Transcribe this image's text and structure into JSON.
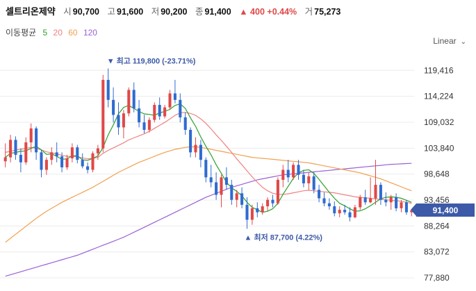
{
  "stock": {
    "name": "셀트리온제약",
    "open_label": "시",
    "open": "90,700",
    "high_label": "고",
    "high": "91,600",
    "low_label": "저",
    "low": "90,200",
    "close_label": "종",
    "close": "91,400",
    "change_arrow": "▲",
    "change": "400",
    "change_pct": "+0.44%",
    "volume_label": "거",
    "volume": "75,273"
  },
  "moving_average": {
    "title": "이동평균",
    "periods": [
      {
        "label": "5",
        "color": "#2ca02c"
      },
      {
        "label": "20",
        "color": "#f08080"
      },
      {
        "label": "60",
        "color": "#f0a050"
      },
      {
        "label": "120",
        "color": "#9a5fd6"
      }
    ]
  },
  "scale_selector": {
    "label": "Linear",
    "icon": "chevron-down-icon"
  },
  "current_price_tag": "91,400",
  "annotations": {
    "high": {
      "marker": "▼",
      "label": "최고",
      "value": "119,800 (-23.71%)"
    },
    "low": {
      "marker": "▲",
      "label": "최저",
      "value": "87,700 (4.22%)"
    }
  },
  "colors": {
    "up": "#e04848",
    "down": "#2f6bd0",
    "ma5": "#2ca02c",
    "ma20": "#f08080",
    "ma60": "#f0a050",
    "ma120": "#9a5fd6",
    "accent": "#3d5aa8"
  },
  "chart_data": {
    "type": "candlestick",
    "y_ticks": [
      "119,416",
      "114,224",
      "109,032",
      "103,840",
      "98,648",
      "93,456",
      "88,264",
      "83,072",
      "77,880"
    ],
    "ylim": [
      77880,
      120600
    ],
    "grid": true,
    "candles": [
      [
        101200,
        104800,
        100000,
        102000
      ],
      [
        102000,
        106500,
        101000,
        105500
      ],
      [
        105500,
        106200,
        101500,
        102500
      ],
      [
        102500,
        103800,
        99000,
        101000
      ],
      [
        101000,
        106000,
        100500,
        105000
      ],
      [
        105000,
        108800,
        103000,
        107800
      ],
      [
        107800,
        108200,
        101500,
        103000
      ],
      [
        103000,
        103500,
        98000,
        99500
      ],
      [
        99500,
        102000,
        98500,
        101500
      ],
      [
        101500,
        104000,
        100500,
        103000
      ],
      [
        103000,
        105000,
        101000,
        102200
      ],
      [
        102200,
        103000,
        99000,
        100000
      ],
      [
        100000,
        102500,
        99500,
        101800
      ],
      [
        101800,
        104800,
        101000,
        104000
      ],
      [
        104000,
        104500,
        100800,
        101500
      ],
      [
        101500,
        102800,
        99800,
        100200
      ],
      [
        100200,
        101000,
        98800,
        99500
      ],
      [
        99500,
        103200,
        99000,
        102800
      ],
      [
        102800,
        104500,
        101500,
        103800
      ],
      [
        103800,
        118500,
        103000,
        117500
      ],
      [
        117500,
        119800,
        112000,
        113500
      ],
      [
        113500,
        116000,
        109000,
        110500
      ],
      [
        110500,
        113000,
        106500,
        108000
      ],
      [
        108000,
        111500,
        105800,
        110800
      ],
      [
        110800,
        116000,
        110200,
        115500
      ],
      [
        115500,
        117000,
        111000,
        111800
      ],
      [
        111800,
        113500,
        108000,
        109000
      ],
      [
        109000,
        110500,
        106800,
        107500
      ],
      [
        107500,
        110000,
        107000,
        109500
      ],
      [
        109500,
        113000,
        109000,
        112500
      ],
      [
        112500,
        114000,
        109500,
        110200
      ],
      [
        110200,
        112500,
        109800,
        112000
      ],
      [
        112000,
        115500,
        111500,
        114800
      ],
      [
        114800,
        117500,
        112800,
        113500
      ],
      [
        113500,
        114800,
        109000,
        110000
      ],
      [
        110000,
        111000,
        106500,
        107500
      ],
      [
        107500,
        108000,
        102000,
        103000
      ],
      [
        103000,
        106000,
        102000,
        104500
      ],
      [
        104500,
        105500,
        100000,
        101500
      ],
      [
        101500,
        102000,
        97000,
        98000
      ],
      [
        98000,
        100500,
        96000,
        97000
      ],
      [
        97000,
        99000,
        93500,
        94500
      ],
      [
        94500,
        98500,
        92000,
        98000
      ],
      [
        98000,
        100000,
        95500,
        96500
      ],
      [
        96500,
        97500,
        92500,
        93500
      ],
      [
        93500,
        95500,
        92000,
        94800
      ],
      [
        94800,
        96000,
        91800,
        92500
      ],
      [
        92500,
        94000,
        87700,
        89500
      ],
      [
        89500,
        92500,
        88500,
        91800
      ],
      [
        91800,
        93000,
        90000,
        91000
      ],
      [
        91000,
        92800,
        90500,
        92200
      ],
      [
        92200,
        94000,
        91200,
        93500
      ],
      [
        93500,
        94500,
        92000,
        92800
      ],
      [
        92800,
        98000,
        92500,
        97500
      ],
      [
        97500,
        100500,
        96000,
        99500
      ],
      [
        99500,
        101500,
        97000,
        98000
      ],
      [
        98000,
        101000,
        97500,
        100500
      ],
      [
        100500,
        101500,
        97500,
        98500
      ],
      [
        98500,
        99500,
        96000,
        96800
      ],
      [
        96800,
        99000,
        95500,
        98200
      ],
      [
        98200,
        99000,
        94800,
        95500
      ],
      [
        95500,
        96500,
        93000,
        93800
      ],
      [
        93800,
        95000,
        92200,
        92800
      ],
      [
        92800,
        93800,
        91500,
        92200
      ],
      [
        92200,
        93200,
        90200,
        90800
      ],
      [
        90800,
        92200,
        90000,
        91500
      ],
      [
        91500,
        92500,
        90500,
        91000
      ],
      [
        91000,
        92000,
        89200,
        90000
      ],
      [
        90000,
        92500,
        89800,
        92000
      ],
      [
        92000,
        94500,
        91500,
        94000
      ],
      [
        94000,
        95500,
        92500,
        93000
      ],
      [
        93000,
        98000,
        92800,
        93800
      ],
      [
        93800,
        101500,
        92500,
        96500
      ],
      [
        96500,
        97000,
        92500,
        93500
      ],
      [
        93500,
        95000,
        92200,
        93000
      ],
      [
        93000,
        94500,
        91500,
        94000
      ],
      [
        94000,
        94800,
        91200,
        91800
      ],
      [
        91800,
        93500,
        91000,
        93000
      ],
      [
        93000,
        93500,
        90500,
        91000
      ],
      [
        91000,
        91600,
        90200,
        91400
      ]
    ],
    "ma5": [
      102000,
      102800,
      103000,
      103200,
      103300,
      103800,
      104200,
      103500,
      102600,
      102700,
      102200,
      101600,
      101700,
      102300,
      102300,
      101500,
      101400,
      101800,
      102300,
      104000,
      106500,
      108500,
      110700,
      112000,
      112400,
      111800,
      111200,
      110700,
      110600,
      110400,
      110900,
      111200,
      111600,
      112400,
      112700,
      111800,
      109900,
      108200,
      106100,
      104200,
      102500,
      100500,
      98800,
      97000,
      95900,
      95200,
      94300,
      93000,
      92000,
      91500,
      91000,
      91200,
      91700,
      92800,
      94600,
      96200,
      97800,
      98900,
      99400,
      99500,
      98800,
      97600,
      96300,
      95000,
      93800,
      92800,
      92300,
      91700,
      91200,
      91300,
      91700,
      92300,
      93000,
      93700,
      94000,
      94100,
      94000,
      93800,
      93400,
      93000
    ],
    "ma20": [
      103000,
      103200,
      103500,
      103600,
      103800,
      104000,
      103800,
      103500,
      103100,
      102900,
      102700,
      102400,
      102200,
      102200,
      102100,
      101900,
      101700,
      101800,
      102000,
      102800,
      103400,
      103900,
      104400,
      104900,
      105500,
      105900,
      106300,
      106700,
      107200,
      107800,
      108400,
      109000,
      109700,
      110400,
      110900,
      111000,
      110800,
      110400,
      109700,
      108800,
      107700,
      106500,
      105400,
      104200,
      103000,
      101700,
      100500,
      99300,
      98100,
      97000,
      96000,
      95300,
      94800,
      94600,
      94600,
      94700,
      94900,
      95100,
      95300,
      95400,
      95300,
      95200,
      95100,
      95000,
      94900,
      94700,
      94500,
      94300,
      94100,
      94000,
      93900,
      93800,
      93700,
      93600,
      93500,
      93400,
      93300,
      93200,
      93000,
      92800
    ],
    "ma60": [
      85000,
      85800,
      86600,
      87400,
      88200,
      89000,
      89800,
      90500,
      91200,
      91800,
      92400,
      93000,
      93500,
      94000,
      94500,
      95000,
      95500,
      96000,
      96600,
      97200,
      97800,
      98400,
      99000,
      99500,
      100000,
      100500,
      101000,
      101400,
      101800,
      102200,
      102600,
      103000,
      103300,
      103600,
      103800,
      104000,
      104100,
      104100,
      104000,
      103800,
      103600,
      103400,
      103200,
      103000,
      102800,
      102600,
      102400,
      102200,
      102000,
      101900,
      101800,
      101700,
      101600,
      101500,
      101400,
      101300,
      101200,
      101100,
      101000,
      100900,
      100700,
      100500,
      100300,
      100100,
      99900,
      99700,
      99500,
      99300,
      99100,
      98900,
      98600,
      98300,
      98000,
      97700,
      97300,
      96900,
      96500,
      96100,
      95700,
      95300
    ],
    "ma120": [
      78200,
      78500,
      78800,
      79100,
      79400,
      79700,
      80000,
      80300,
      80600,
      80900,
      81200,
      81500,
      81800,
      82100,
      82400,
      82800,
      83200,
      83600,
      84000,
      84400,
      84800,
      85200,
      85600,
      86000,
      86500,
      87000,
      87500,
      88000,
      88500,
      89000,
      89500,
      90000,
      90500,
      91000,
      91500,
      92000,
      92500,
      93000,
      93500,
      94000,
      94400,
      94800,
      95200,
      95600,
      96000,
      96300,
      96600,
      96900,
      97200,
      97500,
      97700,
      97900,
      98100,
      98300,
      98500,
      98600,
      98700,
      98800,
      98900,
      99000,
      99100,
      99200,
      99300,
      99400,
      99500,
      99600,
      99700,
      99800,
      99900,
      100000,
      100100,
      100200,
      100300,
      100400,
      100500,
      100600,
      100650,
      100700,
      100750,
      100800
    ]
  }
}
